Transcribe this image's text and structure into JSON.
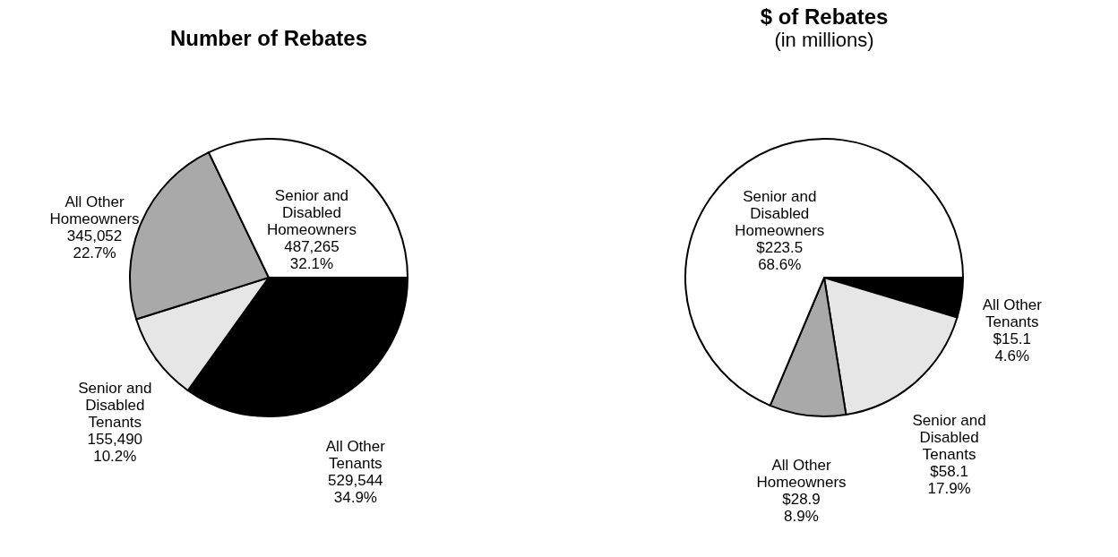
{
  "chart_data": [
    {
      "type": "pie",
      "title": "Number of Rebates",
      "categories": [
        "All Other Tenants",
        "Senior and Disabled Tenants",
        "All Other Homeowners",
        "Senior and Disabled Homeowners"
      ],
      "values": [
        529544,
        155490,
        345052,
        487265
      ],
      "value_labels": [
        "529,544\n34.9%",
        "155,490\n10.2%",
        "345,052\n22.7%",
        "487,265\n32.1%"
      ],
      "colors": [
        "#000000",
        "#e6e6e6",
        "#a9a9a9",
        "#ffffff"
      ]
    },
    {
      "type": "pie",
      "title": "$ of Rebates",
      "subtitle": "(in millions)",
      "categories": [
        "All Other Tenants",
        "Senior and Disabled Tenants",
        "All Other Homeowners",
        "Senior and Disabled Homeowners"
      ],
      "values": [
        15.1,
        58.1,
        28.9,
        223.5
      ],
      "value_labels": [
        "$15.1\n4.6%",
        "$58.1\n17.9%",
        "$28.9\n8.9%",
        "$223.5\n68.6%"
      ],
      "colors": [
        "#000000",
        "#e6e6e6",
        "#a9a9a9",
        "#ffffff"
      ]
    }
  ]
}
